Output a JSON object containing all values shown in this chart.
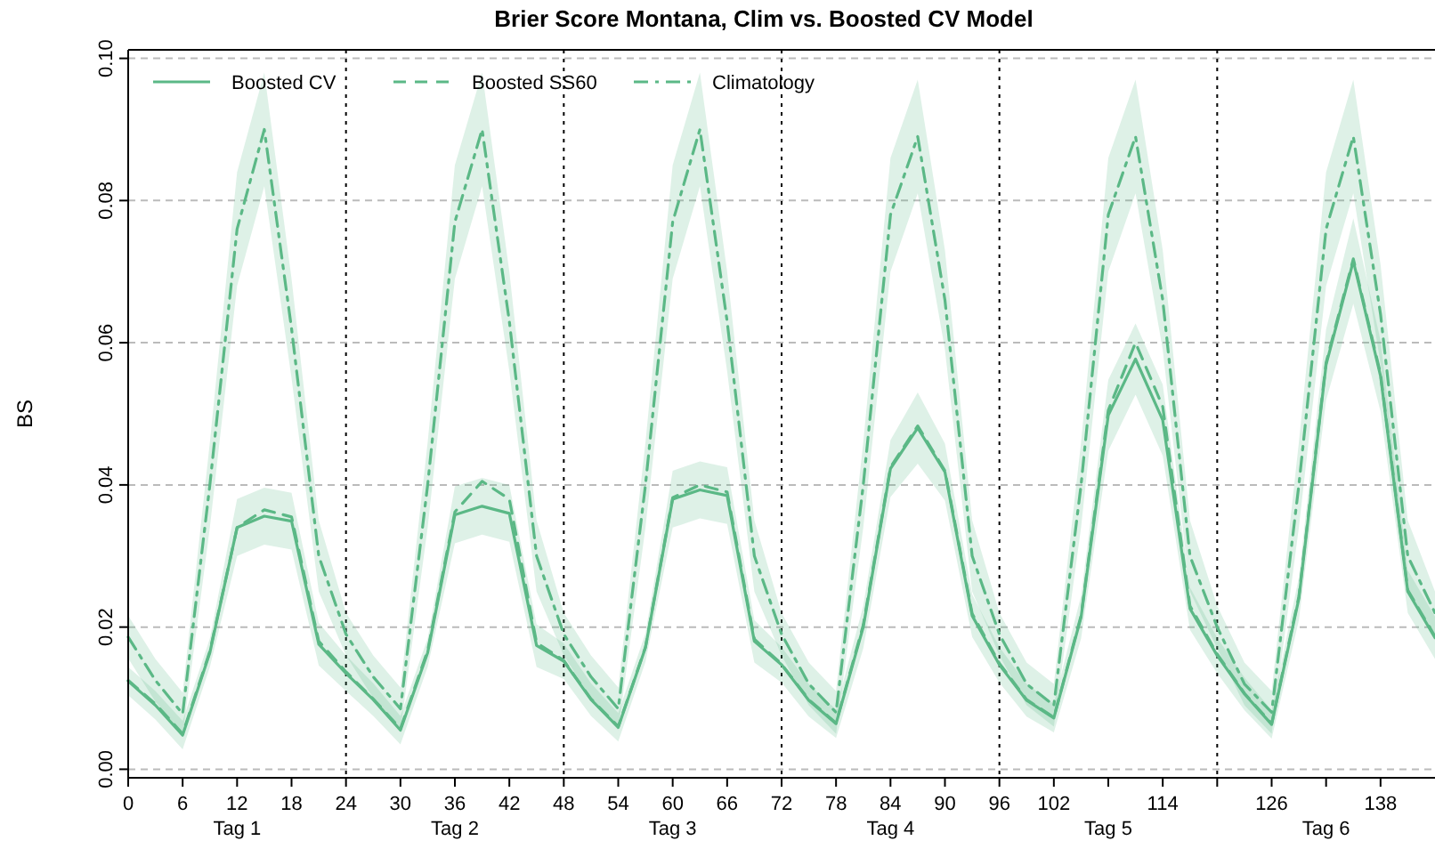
{
  "chart_data": {
    "type": "line",
    "title": "Brier Score Montana, Clim vs. Boosted CV Model",
    "ylabel": "BS",
    "x": [
      0,
      3,
      6,
      9,
      12,
      15,
      18,
      21,
      24,
      27,
      30,
      33,
      36,
      39,
      42,
      45,
      48,
      51,
      54,
      57,
      60,
      63,
      66,
      69,
      72,
      75,
      78,
      81,
      84,
      87,
      90,
      93,
      96,
      99,
      102,
      105,
      108,
      111,
      114,
      117,
      120,
      123,
      126,
      129,
      132,
      135,
      138,
      141,
      144
    ],
    "xlim": [
      0,
      144
    ],
    "xticks": [
      0,
      6,
      12,
      18,
      24,
      30,
      36,
      42,
      48,
      54,
      60,
      66,
      72,
      78,
      84,
      90,
      96,
      102,
      {
        "value": 108,
        "label": null
      },
      114,
      {
        "value": 120,
        "label": null
      },
      126,
      {
        "value": 132,
        "label": null
      },
      138
    ],
    "ylim": [
      -0.0012,
      0.1012
    ],
    "yticks": [
      {
        "value": 0,
        "label": "0.00"
      },
      {
        "value": 0.02,
        "label": "0.02"
      },
      {
        "value": 0.04,
        "label": "0.04"
      },
      {
        "value": 0.06,
        "label": "0.06"
      },
      {
        "value": 0.08,
        "label": "0.08"
      },
      {
        "value": 0.1,
        "label": "0.10"
      }
    ],
    "grid": "y",
    "legend": "top left",
    "marker": "none",
    "ref_lines": [
      {
        "axis": "x",
        "value": 24,
        "color": "#000000",
        "line_style": "dotted"
      },
      {
        "axis": "x",
        "value": 48,
        "color": "#000000",
        "line_style": "dotted"
      },
      {
        "axis": "x",
        "value": 72,
        "color": "#000000",
        "line_style": "dotted"
      },
      {
        "axis": "x",
        "value": 96,
        "color": "#000000",
        "line_style": "dotted"
      },
      {
        "axis": "x",
        "value": 120,
        "color": "#000000",
        "line_style": "dotted"
      }
    ],
    "annotations": [
      "Tag 1",
      "Tag 2",
      "Tag 3",
      "Tag 4",
      "Tag 5",
      "Tag 6"
    ],
    "series": [
      {
        "name": "Boosted CV",
        "color": "#5bb886",
        "line_style": "solid",
        "values": [
          0.0124,
          0.009,
          0.0048,
          0.0164,
          0.034,
          0.0356,
          0.0349,
          0.0176,
          0.0135,
          0.0098,
          0.0055,
          0.0164,
          0.0358,
          0.037,
          0.036,
          0.0174,
          0.0152,
          0.0098,
          0.0059,
          0.0171,
          0.038,
          0.0393,
          0.0385,
          0.018,
          0.0147,
          0.0097,
          0.0064,
          0.02,
          0.0423,
          0.048,
          0.0418,
          0.0216,
          0.0147,
          0.0097,
          0.0072,
          0.0214,
          0.0498,
          0.0577,
          0.0491,
          0.0226,
          0.016,
          0.0106,
          0.0063,
          0.024,
          0.0569,
          0.0715,
          0.0553,
          0.025,
          0.0185
        ],
        "lower": [
          0.0104,
          0.007,
          0.0028,
          0.0144,
          0.03,
          0.0316,
          0.0309,
          0.0146,
          0.011,
          0.0075,
          0.0035,
          0.0144,
          0.0318,
          0.033,
          0.032,
          0.0144,
          0.0127,
          0.0075,
          0.0039,
          0.0151,
          0.034,
          0.0353,
          0.0345,
          0.015,
          0.0122,
          0.0074,
          0.0044,
          0.017,
          0.0383,
          0.043,
          0.0378,
          0.0186,
          0.0122,
          0.0074,
          0.0052,
          0.0184,
          0.0448,
          0.0527,
          0.0441,
          0.0196,
          0.0135,
          0.0083,
          0.0043,
          0.021,
          0.0519,
          0.0655,
          0.0503,
          0.022,
          0.0155
        ],
        "upper": [
          0.0144,
          0.011,
          0.0068,
          0.0184,
          0.038,
          0.0396,
          0.0389,
          0.0206,
          0.016,
          0.0121,
          0.0075,
          0.0184,
          0.0398,
          0.041,
          0.04,
          0.0204,
          0.0177,
          0.0121,
          0.0079,
          0.0191,
          0.042,
          0.0433,
          0.0425,
          0.021,
          0.0172,
          0.012,
          0.0084,
          0.023,
          0.0463,
          0.053,
          0.0458,
          0.0246,
          0.0172,
          0.012,
          0.0092,
          0.0244,
          0.0548,
          0.0627,
          0.0541,
          0.0256,
          0.0185,
          0.0129,
          0.0083,
          0.027,
          0.0619,
          0.0775,
          0.0603,
          0.028,
          0.0215
        ]
      },
      {
        "name": "Boosted SS60",
        "color": "#5bb886",
        "line_style": "dashed",
        "values": [
          0.0125,
          0.0092,
          0.005,
          0.0166,
          0.034,
          0.0365,
          0.0355,
          0.018,
          0.0137,
          0.0099,
          0.0057,
          0.0167,
          0.0362,
          0.0405,
          0.038,
          0.0178,
          0.0153,
          0.0099,
          0.006,
          0.0172,
          0.0382,
          0.04,
          0.039,
          0.0183,
          0.0148,
          0.0098,
          0.0065,
          0.0203,
          0.0425,
          0.0483,
          0.042,
          0.0219,
          0.0149,
          0.0098,
          0.0073,
          0.0216,
          0.0505,
          0.06,
          0.051,
          0.023,
          0.0162,
          0.0107,
          0.0064,
          0.0243,
          0.0572,
          0.0718,
          0.0556,
          0.0252,
          0.0187
        ]
      },
      {
        "name": "Climatology",
        "color": "#5bb886",
        "line_style": "dashdot",
        "values": [
          0.0186,
          0.0125,
          0.0078,
          0.04,
          0.076,
          0.09,
          0.062,
          0.03,
          0.019,
          0.013,
          0.0085,
          0.04,
          0.077,
          0.09,
          0.063,
          0.03,
          0.019,
          0.013,
          0.0085,
          0.04,
          0.077,
          0.09,
          0.063,
          0.03,
          0.019,
          0.012,
          0.008,
          0.04,
          0.078,
          0.089,
          0.066,
          0.03,
          0.019,
          0.012,
          0.009,
          0.04,
          0.078,
          0.089,
          0.066,
          0.03,
          0.02,
          0.012,
          0.008,
          0.04,
          0.076,
          0.089,
          0.064,
          0.03,
          0.022
        ],
        "lower": [
          0.0156,
          0.0095,
          0.0048,
          0.034,
          0.068,
          0.082,
          0.055,
          0.025,
          0.016,
          0.01,
          0.0055,
          0.034,
          0.069,
          0.082,
          0.056,
          0.025,
          0.016,
          0.01,
          0.0055,
          0.034,
          0.069,
          0.082,
          0.056,
          0.025,
          0.016,
          0.009,
          0.005,
          0.034,
          0.07,
          0.081,
          0.059,
          0.025,
          0.016,
          0.009,
          0.006,
          0.034,
          0.07,
          0.081,
          0.059,
          0.025,
          0.017,
          0.009,
          0.005,
          0.034,
          0.068,
          0.081,
          0.057,
          0.025,
          0.019
        ],
        "upper": [
          0.0216,
          0.0155,
          0.0108,
          0.046,
          0.084,
          0.098,
          0.069,
          0.035,
          0.022,
          0.016,
          0.0115,
          0.046,
          0.085,
          0.098,
          0.07,
          0.035,
          0.022,
          0.016,
          0.0115,
          0.046,
          0.085,
          0.098,
          0.07,
          0.035,
          0.022,
          0.015,
          0.011,
          0.046,
          0.086,
          0.097,
          0.073,
          0.035,
          0.022,
          0.015,
          0.012,
          0.046,
          0.086,
          0.097,
          0.073,
          0.035,
          0.023,
          0.015,
          0.011,
          0.046,
          0.084,
          0.097,
          0.071,
          0.035,
          0.025
        ]
      }
    ]
  }
}
